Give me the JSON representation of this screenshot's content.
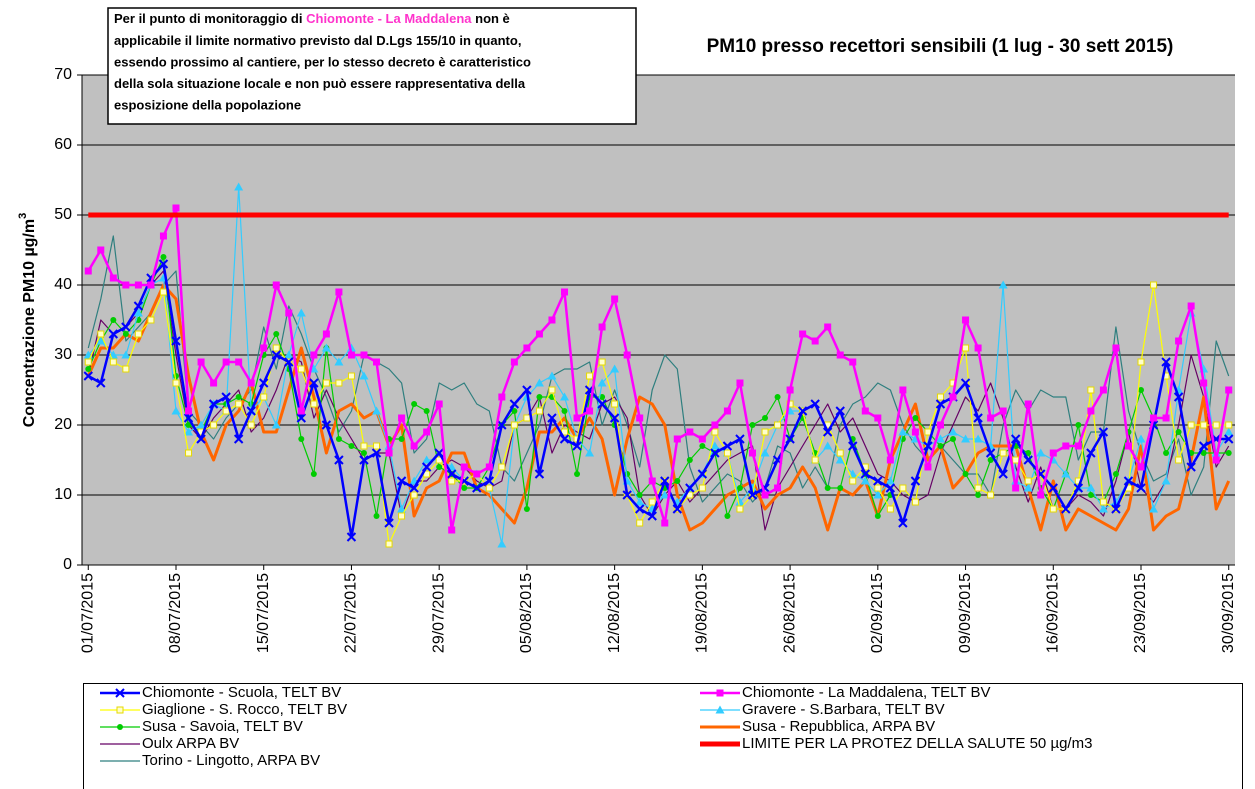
{
  "chart_data": {
    "type": "line",
    "title": "PM10 presso recettori sensibili (1 lug - 30 sett 2015)",
    "y_label": "Concentrazione PM10 µg/m",
    "y_label_sup": "3",
    "annotation": [
      [
        "Per il punto di monitoraggio di ",
        "Chiomonte - La Maddalena",
        " non è"
      ],
      "applicabile il limite normativo previsto dal D.Lgs 155/10 in quanto,",
      "essendo prossimo al cantiere, per lo stesso decreto è caratteristico",
      "della sola situazione locale e non può essere rappresentativa della",
      "esposizione della popolazione"
    ],
    "annotation_highlight_color": "#ff33cc",
    "categories": [
      "01/07/2015",
      null,
      null,
      null,
      null,
      null,
      null,
      "08/07/2015",
      null,
      null,
      null,
      null,
      null,
      null,
      "15/07/2015",
      null,
      null,
      null,
      null,
      null,
      null,
      "22/07/2015",
      null,
      null,
      null,
      null,
      null,
      null,
      "29/07/2015",
      null,
      null,
      null,
      null,
      null,
      null,
      "05/08/2015",
      null,
      null,
      null,
      null,
      null,
      null,
      "12/08/2015",
      null,
      null,
      null,
      null,
      null,
      null,
      "19/08/2015",
      null,
      null,
      null,
      null,
      null,
      null,
      "26/08/2015",
      null,
      null,
      null,
      null,
      null,
      null,
      "02/09/2015",
      null,
      null,
      null,
      null,
      null,
      null,
      "09/09/2015",
      null,
      null,
      null,
      null,
      null,
      null,
      "16/09/2015",
      null,
      null,
      null,
      null,
      null,
      null,
      "23/09/2015",
      null,
      null,
      null,
      null,
      null,
      null,
      "30/09/2015"
    ],
    "ylim": [
      0,
      70
    ],
    "yticks": [
      0,
      10,
      20,
      30,
      40,
      50,
      60,
      70
    ],
    "grid": true,
    "series": [
      {
        "name": "Chiomonte - Scuola, TELT BV",
        "color": "#0000ff",
        "width": 2.5,
        "marker": "x",
        "values": [
          27,
          26,
          33,
          34,
          37,
          41,
          43,
          32,
          21,
          18,
          23,
          24,
          18,
          22,
          26,
          30,
          29,
          21,
          26,
          20,
          15,
          4,
          15,
          16,
          6,
          12,
          11,
          14,
          16,
          13,
          12,
          11,
          12,
          20,
          23,
          25,
          13,
          21,
          18,
          17,
          25,
          23,
          21,
          10,
          8,
          7,
          12,
          8,
          11,
          13,
          16,
          17,
          18,
          10,
          11,
          15,
          18,
          22,
          23,
          19,
          22,
          17,
          13,
          12,
          11,
          6,
          12,
          17,
          23,
          24,
          26,
          21,
          16,
          13,
          18,
          15,
          13,
          11,
          8,
          11,
          16,
          19,
          8,
          12,
          11,
          20,
          29,
          24,
          14,
          17,
          18,
          18
        ]
      },
      {
        "name": "Chiomonte - La Maddalena, TELT BV",
        "color": "#ff00ff",
        "width": 2.5,
        "marker": "square",
        "values": [
          42,
          45,
          41,
          40,
          40,
          40,
          47,
          51,
          22,
          29,
          26,
          29,
          29,
          26,
          31,
          40,
          36,
          22,
          30,
          33,
          39,
          30,
          30,
          29,
          16,
          21,
          17,
          19,
          23,
          5,
          14,
          13,
          14,
          24,
          29,
          31,
          33,
          35,
          39,
          21,
          22,
          34,
          38,
          30,
          21,
          12,
          6,
          18,
          19,
          18,
          20,
          22,
          26,
          16,
          10,
          11,
          25,
          33,
          32,
          34,
          30,
          29,
          22,
          21,
          15,
          25,
          19,
          14,
          20,
          24,
          35,
          31,
          21,
          22,
          11,
          23,
          10,
          16,
          17,
          17,
          22,
          25,
          31,
          17,
          14,
          21,
          21,
          32,
          37,
          26,
          15,
          25
        ]
      },
      {
        "name": "Giaglione - S. Rocco, TELT BV",
        "color": "#ffff00",
        "width": 1.2,
        "marker": "open-square",
        "values": [
          29,
          33,
          29,
          28,
          33,
          35,
          39,
          26,
          16,
          19,
          20,
          22,
          23,
          20,
          24,
          31,
          29,
          28,
          23,
          26,
          26,
          27,
          17,
          17,
          3,
          7,
          10,
          13,
          15,
          12,
          12,
          13,
          11,
          14,
          20,
          21,
          22,
          25,
          19,
          18,
          27,
          29,
          23,
          10,
          6,
          9,
          12,
          8,
          10,
          11,
          19,
          16,
          8,
          10,
          19,
          20,
          23,
          22,
          15,
          20,
          16,
          12,
          14,
          11,
          8,
          11,
          9,
          19,
          24,
          26,
          31,
          11,
          10,
          16,
          15,
          12,
          13,
          8,
          8,
          12,
          25,
          9,
          8,
          11,
          29,
          40,
          27,
          15,
          20,
          20,
          20,
          20
        ]
      },
      {
        "name": "Gravere - S.Barbara, TELT BV",
        "color": "#33ccff",
        "width": 1.2,
        "marker": "triangle",
        "values": [
          30,
          32,
          30,
          30,
          36,
          40,
          41,
          22,
          19,
          20,
          23,
          22,
          54,
          22,
          24,
          20,
          30,
          36,
          28,
          31,
          29,
          31,
          27,
          22,
          17,
          8,
          12,
          15,
          15,
          14,
          12,
          13,
          11,
          3,
          20,
          24,
          26,
          27,
          24,
          18,
          16,
          26,
          28,
          12,
          9,
          8,
          10,
          9,
          11,
          13,
          17,
          16,
          9,
          11,
          16,
          20,
          22,
          22,
          15,
          17,
          15,
          13,
          12,
          10,
          12,
          19,
          18,
          17,
          18,
          19,
          18,
          18,
          17,
          40,
          12,
          11,
          16,
          15,
          13,
          11,
          11,
          8,
          9,
          12,
          18,
          8,
          12,
          25,
          36,
          28,
          16,
          19
        ]
      },
      {
        "name": "Susa - Savoia, TELT BV",
        "color": "#00cc00",
        "width": 1.2,
        "marker": "circle",
        "values": [
          28,
          32,
          35,
          33,
          35,
          40,
          44,
          27,
          20,
          19,
          23,
          23,
          24,
          23,
          30,
          33,
          28,
          18,
          13,
          31,
          18,
          17,
          16,
          7,
          18,
          18,
          23,
          22,
          14,
          13,
          11,
          11,
          14,
          20,
          22,
          8,
          24,
          24,
          22,
          13,
          24,
          24,
          20,
          13,
          10,
          12,
          11,
          12,
          15,
          17,
          16,
          7,
          11,
          20,
          21,
          24,
          18,
          21,
          16,
          11,
          11,
          18,
          13,
          7,
          10,
          18,
          21,
          19,
          17,
          18,
          13,
          10,
          15,
          16,
          17,
          16,
          11,
          8,
          13,
          20,
          10,
          9,
          13,
          19,
          25,
          21,
          16,
          19,
          16,
          16,
          16,
          16
        ]
      },
      {
        "name": "Susa - Repubblica, ARPA BV",
        "color": "#ff6600",
        "width": 3,
        "values": [
          27,
          31,
          31,
          33,
          32,
          36,
          40,
          38,
          27,
          19,
          15,
          20,
          22,
          26,
          19,
          19,
          25,
          31,
          24,
          16,
          22,
          23,
          21,
          22,
          17,
          20,
          7,
          11,
          12,
          16,
          16,
          11,
          10,
          8,
          6,
          11,
          19,
          19,
          21,
          18,
          21,
          18,
          10,
          18,
          24,
          23,
          20,
          10,
          5,
          6,
          8,
          10,
          11,
          12,
          8,
          10,
          11,
          14,
          11,
          5,
          11,
          10,
          12,
          7,
          15,
          19,
          23,
          15,
          17,
          11,
          13,
          16,
          17,
          17,
          17,
          11,
          5,
          12,
          5,
          8,
          7,
          6,
          5,
          8,
          17,
          5,
          7,
          8,
          15,
          24,
          8,
          12
        ]
      },
      {
        "name": "Oulx ARPA BV",
        "color": "#660066",
        "width": 1.2,
        "values": [
          27,
          35,
          33,
          34,
          36,
          40,
          42,
          30,
          20,
          18,
          21,
          23,
          25,
          19,
          21,
          25,
          30,
          29,
          21,
          25,
          21,
          18,
          15,
          16,
          16,
          7,
          12,
          12,
          14,
          15,
          14,
          12,
          11,
          12,
          20,
          21,
          24,
          16,
          20,
          19,
          18,
          23,
          24,
          21,
          10,
          7,
          10,
          12,
          9,
          11,
          13,
          15,
          16,
          17,
          5,
          11,
          14,
          17,
          20,
          23,
          19,
          21,
          17,
          13,
          12,
          10,
          9,
          10,
          16,
          20,
          24,
          22,
          26,
          21,
          14,
          9,
          14,
          8,
          8,
          10,
          9,
          7,
          12,
          19,
          11,
          9,
          12,
          20,
          30,
          24,
          14,
          17
        ]
      },
      {
        "name": "LIMITE PER LA PROTEZ DELLA SALUTE 50 µg/m3",
        "color": "#ff0000",
        "width": 5,
        "values": [
          50,
          50,
          50,
          50,
          50,
          50,
          50,
          50,
          50,
          50,
          50,
          50,
          50,
          50,
          50,
          50,
          50,
          50,
          50,
          50,
          50,
          50,
          50,
          50,
          50,
          50,
          50,
          50,
          50,
          50,
          50,
          50,
          50,
          50,
          50,
          50,
          50,
          50,
          50,
          50,
          50,
          50,
          50,
          50,
          50,
          50,
          50,
          50,
          50,
          50,
          50,
          50,
          50,
          50,
          50,
          50,
          50,
          50,
          50,
          50,
          50,
          50,
          50,
          50,
          50,
          50,
          50,
          50,
          50,
          50,
          50,
          50,
          50,
          50,
          50,
          50,
          50,
          50,
          50,
          50,
          50,
          50,
          50,
          50,
          50,
          50,
          50,
          50,
          50,
          50,
          50,
          50
        ]
      },
      {
        "name": "Torino - Lingotto, ARPA BV",
        "color": "#2f7f7f",
        "width": 1.2,
        "values": [
          31,
          38,
          47,
          32,
          34,
          36,
          40,
          42,
          22,
          20,
          18,
          21,
          23,
          25,
          34,
          28,
          37,
          33,
          28,
          24,
          19,
          22,
          30,
          29,
          28,
          26,
          16,
          18,
          26,
          25,
          26,
          23,
          22,
          14,
          12,
          16,
          20,
          27,
          28,
          28,
          29,
          20,
          25,
          20,
          14,
          25,
          30,
          28,
          14,
          9,
          11,
          13,
          12,
          9,
          11,
          17,
          16,
          11,
          14,
          11,
          20,
          23,
          24,
          26,
          25,
          20,
          17,
          15,
          17,
          15,
          13,
          13,
          10,
          20,
          25,
          22,
          25,
          24,
          24,
          15,
          19,
          19,
          34,
          22,
          16,
          12,
          13,
          18,
          10,
          14,
          32,
          27
        ]
      }
    ]
  }
}
